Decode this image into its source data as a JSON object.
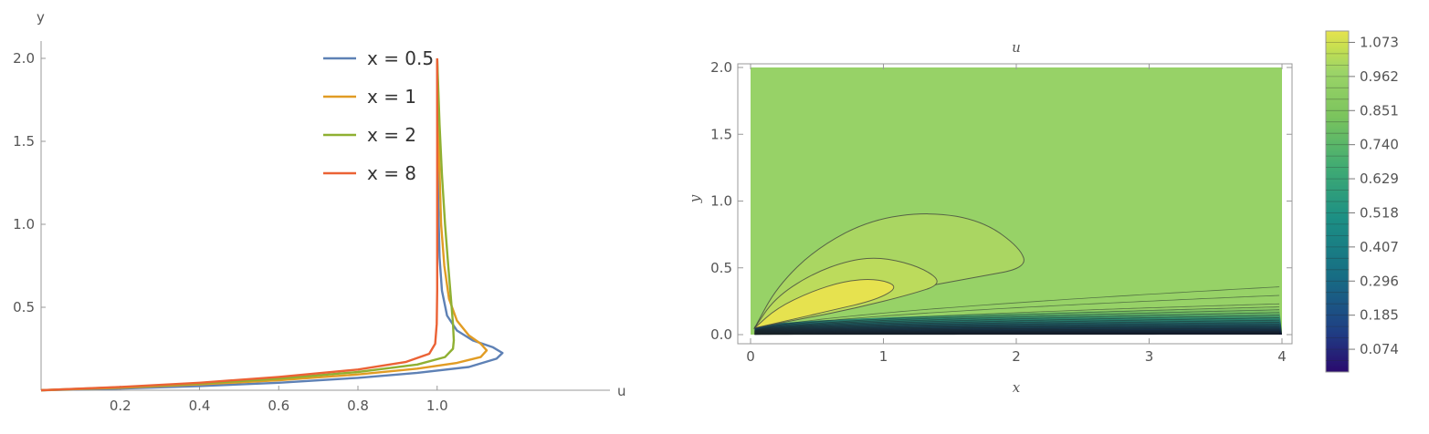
{
  "chart_data": [
    {
      "type": "line",
      "xlabel": "u",
      "ylabel": "y",
      "xlim": [
        0,
        1.2
      ],
      "ylim": [
        0,
        2.05
      ],
      "xticks": [
        "0.2",
        "0.4",
        "0.6",
        "0.8",
        "1.0"
      ],
      "yticks": [
        "0.5",
        "1.0",
        "1.5",
        "2.0"
      ],
      "legend_position": "top-right",
      "grid": false,
      "series": [
        {
          "name": "x = 0.5",
          "color": "#5e81b5",
          "points": [
            [
              0,
              0
            ],
            [
              0.2,
              0.01
            ],
            [
              0.4,
              0.025
            ],
            [
              0.6,
              0.045
            ],
            [
              0.8,
              0.075
            ],
            [
              0.95,
              0.105
            ],
            [
              1.08,
              0.14
            ],
            [
              1.15,
              0.19
            ],
            [
              1.165,
              0.225
            ],
            [
              1.14,
              0.26
            ],
            [
              1.09,
              0.3
            ],
            [
              1.05,
              0.36
            ],
            [
              1.025,
              0.45
            ],
            [
              1.012,
              0.6
            ],
            [
              1.006,
              0.8
            ],
            [
              1.003,
              1.1
            ],
            [
              1.001,
              1.5
            ],
            [
              1.0,
              2.0
            ]
          ]
        },
        {
          "name": "x = 1",
          "color": "#e19c24",
          "points": [
            [
              0,
              0
            ],
            [
              0.2,
              0.015
            ],
            [
              0.4,
              0.035
            ],
            [
              0.6,
              0.06
            ],
            [
              0.8,
              0.095
            ],
            [
              0.95,
              0.13
            ],
            [
              1.05,
              0.165
            ],
            [
              1.11,
              0.2
            ],
            [
              1.125,
              0.24
            ],
            [
              1.11,
              0.28
            ],
            [
              1.08,
              0.33
            ],
            [
              1.05,
              0.42
            ],
            [
              1.03,
              0.55
            ],
            [
              1.018,
              0.75
            ],
            [
              1.01,
              1.0
            ],
            [
              1.005,
              1.4
            ],
            [
              1.002,
              1.8
            ],
            [
              1.0,
              2.0
            ]
          ]
        },
        {
          "name": "x = 2",
          "color": "#8fb032",
          "points": [
            [
              0,
              0
            ],
            [
              0.2,
              0.018
            ],
            [
              0.4,
              0.04
            ],
            [
              0.6,
              0.07
            ],
            [
              0.8,
              0.11
            ],
            [
              0.95,
              0.155
            ],
            [
              1.02,
              0.2
            ],
            [
              1.04,
              0.25
            ],
            [
              1.042,
              0.3
            ],
            [
              1.04,
              0.4
            ],
            [
              1.035,
              0.55
            ],
            [
              1.028,
              0.75
            ],
            [
              1.02,
              1.0
            ],
            [
              1.012,
              1.3
            ],
            [
              1.006,
              1.6
            ],
            [
              1.0,
              2.0
            ]
          ]
        },
        {
          "name": "x = 8",
          "color": "#eb6235",
          "points": [
            [
              0,
              0
            ],
            [
              0.2,
              0.02
            ],
            [
              0.4,
              0.045
            ],
            [
              0.6,
              0.08
            ],
            [
              0.8,
              0.125
            ],
            [
              0.92,
              0.17
            ],
            [
              0.98,
              0.22
            ],
            [
              0.995,
              0.28
            ],
            [
              0.999,
              0.4
            ],
            [
              1.0,
              0.6
            ],
            [
              1.0,
              1.0
            ],
            [
              1.0,
              1.5
            ],
            [
              1.0,
              2.0
            ]
          ]
        }
      ]
    },
    {
      "type": "heatmap",
      "title": "u",
      "xlabel": "x",
      "ylabel": "y",
      "xlim": [
        0,
        4
      ],
      "ylim": [
        0,
        2
      ],
      "xticks": [
        "0",
        "1",
        "2",
        "3",
        "4"
      ],
      "yticks": [
        "0.0",
        "0.5",
        "1.0",
        "1.5",
        "2.0"
      ],
      "field_value_far": 1.0,
      "contours": [
        {
          "level": 1.073,
          "color": "#e6e24f",
          "points": [
            [
              0.03,
              0.05
            ],
            [
              0.2,
              0.2
            ],
            [
              0.45,
              0.32
            ],
            [
              0.7,
              0.4
            ],
            [
              0.95,
              0.42
            ],
            [
              1.12,
              0.36
            ],
            [
              0.95,
              0.26
            ],
            [
              0.6,
              0.18
            ],
            [
              0.3,
              0.11
            ],
            [
              0.03,
              0.05
            ]
          ]
        },
        {
          "level": 1.04,
          "color": "#bcdb5c",
          "points": [
            [
              0.03,
              0.05
            ],
            [
              0.18,
              0.27
            ],
            [
              0.45,
              0.45
            ],
            [
              0.75,
              0.56
            ],
            [
              1.0,
              0.58
            ],
            [
              1.3,
              0.5
            ],
            [
              1.45,
              0.38
            ],
            [
              1.2,
              0.3
            ],
            [
              0.8,
              0.2
            ],
            [
              0.4,
              0.12
            ],
            [
              0.03,
              0.05
            ]
          ]
        },
        {
          "level": 1.01,
          "color": "#aad662",
          "points": [
            [
              0.03,
              0.05
            ],
            [
              0.2,
              0.36
            ],
            [
              0.5,
              0.65
            ],
            [
              0.9,
              0.86
            ],
            [
              1.35,
              0.92
            ],
            [
              1.75,
              0.85
            ],
            [
              2.03,
              0.65
            ],
            [
              2.08,
              0.5
            ],
            [
              1.7,
              0.43
            ],
            [
              1.2,
              0.34
            ],
            [
              0.7,
              0.22
            ],
            [
              0.3,
              0.12
            ],
            [
              0.03,
              0.05
            ]
          ]
        }
      ],
      "colorbar": {
        "ticks": [
          "1.073",
          "0.962",
          "0.851",
          "0.740",
          "0.629",
          "0.518",
          "0.407",
          "0.296",
          "0.185",
          "0.074"
        ],
        "tick_values": [
          1.073,
          0.962,
          0.851,
          0.74,
          0.629,
          0.518,
          0.407,
          0.296,
          0.185,
          0.074
        ],
        "range": [
          0,
          1.11
        ],
        "colors": [
          "#2a0a6e",
          "#1f3f84",
          "#176d84",
          "#1c8f84",
          "#40ab73",
          "#7bc45d",
          "#9cd468",
          "#c6df50",
          "#e6e24f"
        ]
      }
    }
  ]
}
